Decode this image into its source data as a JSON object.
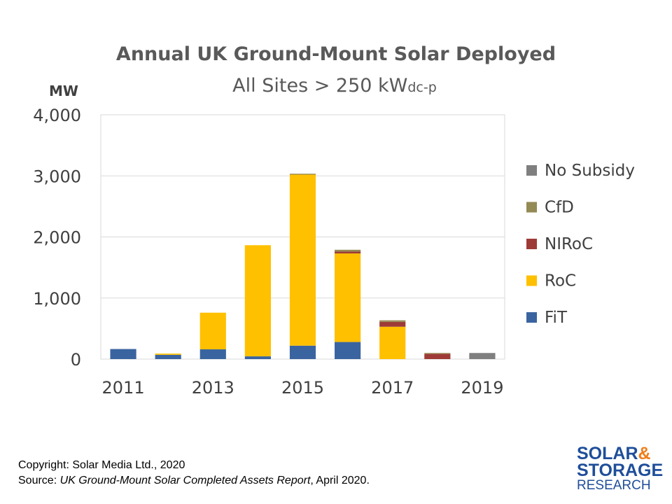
{
  "chart_data": {
    "type": "bar",
    "stacked": true,
    "title": "Annual UK Ground-Mount Solar Deployed",
    "subtitle_main": "All Sites > 250 kW",
    "subtitle_sub": "dc-p",
    "ylabel": "MW",
    "ylim": [
      0,
      4000
    ],
    "yticks": [
      0,
      1000,
      2000,
      3000,
      4000
    ],
    "ytick_labels": [
      "0",
      "1,000",
      "2,000",
      "3,000",
      "4,000"
    ],
    "categories": [
      "2011",
      "2012",
      "2013",
      "2014",
      "2015",
      "2016",
      "2017",
      "2018",
      "2019"
    ],
    "xtick_labels": [
      "2011",
      "",
      "2013",
      "",
      "2015",
      "",
      "2017",
      "",
      "2019"
    ],
    "grid": true,
    "legend_position": "right",
    "series": [
      {
        "name": "FiT",
        "color": "#3a64a0",
        "values": [
          165,
          70,
          160,
          45,
          220,
          280,
          0,
          0,
          0
        ]
      },
      {
        "name": "RoC",
        "color": "#ffc000",
        "values": [
          0,
          20,
          600,
          1820,
          2800,
          1450,
          530,
          0,
          0
        ]
      },
      {
        "name": "NIRoC",
        "color": "#9e3b36",
        "values": [
          0,
          0,
          0,
          0,
          0,
          30,
          80,
          85,
          0
        ]
      },
      {
        "name": "CfD",
        "color": "#948a54",
        "values": [
          0,
          0,
          0,
          0,
          15,
          30,
          25,
          15,
          0
        ]
      },
      {
        "name": "No Subsidy",
        "color": "#7f7f7f",
        "values": [
          0,
          0,
          0,
          0,
          0,
          0,
          0,
          0,
          100
        ]
      }
    ]
  },
  "footer": {
    "copyright": "Copyright: Solar Media Ltd., 2020",
    "source_prefix": "Source: ",
    "source_title": "UK Ground-Mount Solar Completed Assets Report",
    "source_suffix": ", April 2020."
  },
  "logo": {
    "line1_a": "SOLAR",
    "line1_b": "&",
    "line2": "STORAGE",
    "line3": "RESEARCH"
  }
}
